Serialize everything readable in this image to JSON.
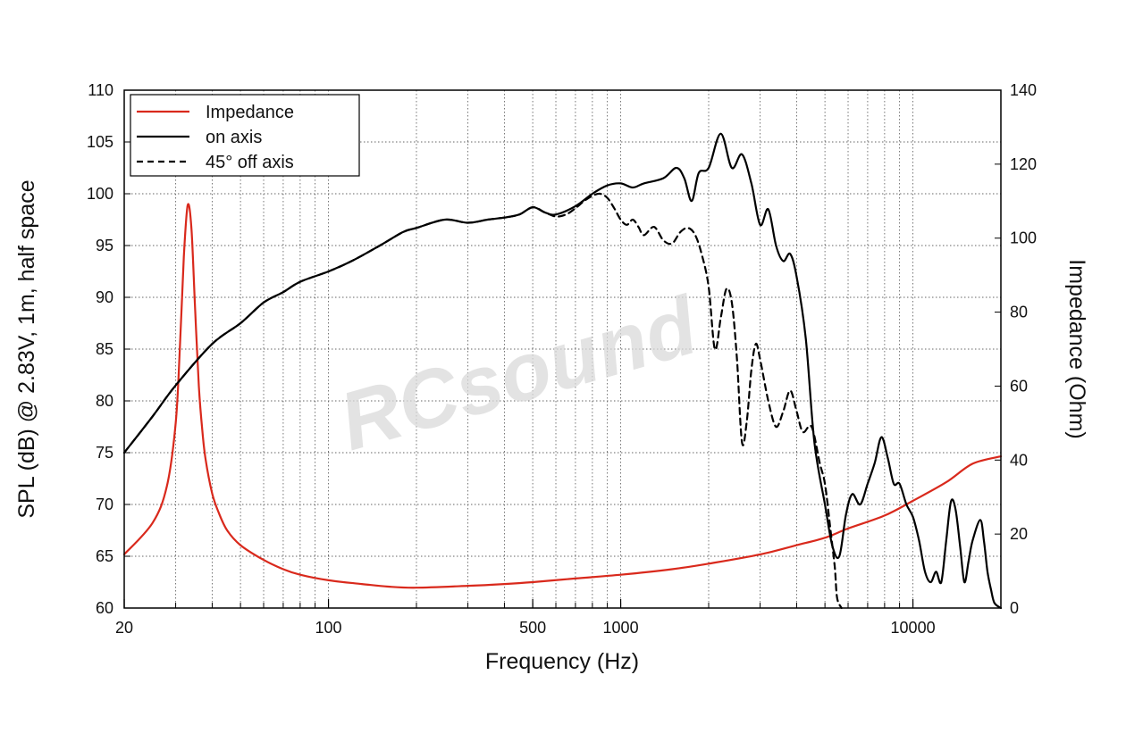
{
  "watermark": "RCsound",
  "chart_data": {
    "type": "line",
    "xlabel": "Frequency (Hz)",
    "ylabel": "SPL (dB) @ 2.83V, 1m, half space",
    "y2label": "Impedance (Ohm)",
    "x_scale": "log",
    "xlim": [
      20,
      20000
    ],
    "ylim": [
      60,
      110
    ],
    "y2lim": [
      0,
      140
    ],
    "x_tick_labels": [
      "20",
      "100",
      "500",
      "1000",
      "10000"
    ],
    "x_tick_values": [
      20,
      100,
      500,
      1000,
      10000
    ],
    "y_ticks": [
      60,
      65,
      70,
      75,
      80,
      85,
      90,
      95,
      100,
      105,
      110
    ],
    "y2_ticks": [
      0,
      20,
      40,
      60,
      80,
      100,
      120,
      140
    ],
    "grid": true,
    "legend_position": "top-left",
    "series": [
      {
        "name": "Impedance",
        "axis": "right",
        "color": "#d9291c",
        "style": "solid",
        "x": [
          20,
          25,
          28,
          30,
          31,
          32,
          33,
          34,
          35,
          36,
          37,
          38,
          40,
          42,
          45,
          50,
          60,
          70,
          80,
          100,
          130,
          160,
          200,
          300,
          400,
          500,
          700,
          1000,
          1500,
          2000,
          3000,
          4000,
          5000,
          6000,
          8000,
          10000,
          13000,
          16000,
          20000
        ],
        "y": [
          14.5,
          23,
          33,
          50,
          70,
          95,
          109,
          102,
          80,
          60,
          48,
          40,
          31,
          26,
          21,
          17,
          13,
          10.5,
          9,
          7.5,
          6.5,
          5.8,
          5.5,
          6,
          6.5,
          7,
          8,
          9,
          10.5,
          12,
          14.5,
          17,
          19,
          21.5,
          25,
          29,
          34,
          39,
          41
        ]
      },
      {
        "name": "on axis",
        "axis": "left",
        "color": "#000000",
        "style": "solid",
        "x": [
          20,
          25,
          30,
          40,
          50,
          60,
          70,
          80,
          100,
          120,
          150,
          180,
          200,
          250,
          300,
          350,
          400,
          450,
          500,
          550,
          600,
          700,
          800,
          900,
          1000,
          1100,
          1200,
          1400,
          1550,
          1650,
          1750,
          1850,
          2000,
          2200,
          2400,
          2600,
          2800,
          3000,
          3200,
          3400,
          3600,
          3800,
          4000,
          4300,
          4600,
          5000,
          5300,
          5600,
          5900,
          6200,
          6600,
          7000,
          7400,
          7800,
          8200,
          8600,
          9000,
          9500,
          10000,
          10500,
          11000,
          11500,
          12000,
          12500,
          13000,
          13500,
          14000,
          14500,
          15000,
          15500,
          16000,
          17000,
          17500,
          18000,
          18500,
          19000,
          20000
        ],
        "y": [
          75,
          78.5,
          81.5,
          85.5,
          87.5,
          89.5,
          90.5,
          91.5,
          92.5,
          93.5,
          95,
          96.3,
          96.7,
          97.5,
          97.2,
          97.5,
          97.7,
          98,
          98.7,
          98.2,
          98,
          98.8,
          100,
          100.8,
          101,
          100.6,
          101,
          101.5,
          102.5,
          101.5,
          99.3,
          102,
          102.5,
          105.8,
          102.5,
          103.8,
          101,
          97,
          98.5,
          95,
          93.5,
          94.2,
          92,
          86,
          76,
          70,
          66,
          65,
          69,
          71,
          70,
          72,
          74,
          76.5,
          74.5,
          72,
          72,
          70,
          68.8,
          66.5,
          63.5,
          62.5,
          63.5,
          62.5,
          66.5,
          70.3,
          69.5,
          66,
          62.5,
          64.5,
          66.5,
          68.5,
          66.5,
          63.5,
          61.8,
          60.5,
          60
        ]
      },
      {
        "name": "45° off axis",
        "axis": "left",
        "color": "#000000",
        "style": "dashed",
        "x": [
          20,
          25,
          30,
          40,
          50,
          60,
          70,
          80,
          100,
          120,
          150,
          180,
          200,
          250,
          300,
          350,
          400,
          450,
          500,
          550,
          600,
          650,
          700,
          750,
          800,
          850,
          900,
          950,
          1000,
          1050,
          1100,
          1150,
          1200,
          1300,
          1400,
          1500,
          1600,
          1700,
          1800,
          1900,
          2000,
          2100,
          2200,
          2300,
          2400,
          2500,
          2600,
          2700,
          2800,
          2900,
          3000,
          3200,
          3400,
          3600,
          3800,
          4000,
          4200,
          4500,
          4800,
          5000,
          5200,
          5400,
          5500,
          5700
        ],
        "y": [
          75,
          78.5,
          81.5,
          85.5,
          87.5,
          89.5,
          90.5,
          91.5,
          92.5,
          93.5,
          95,
          96.3,
          96.7,
          97.5,
          97.2,
          97.5,
          97.7,
          98,
          98.7,
          98.2,
          97.8,
          98,
          98.6,
          99.3,
          99.8,
          100,
          99.6,
          98.6,
          97.5,
          97,
          97.5,
          96.8,
          96,
          96.8,
          95.5,
          95.2,
          96.3,
          96.7,
          96,
          94,
          91,
          85,
          88,
          90.8,
          89.5,
          84,
          76,
          78,
          83,
          85.5,
          84,
          80,
          77.5,
          79,
          81,
          79,
          77,
          77.5,
          74,
          72,
          68,
          64,
          61,
          60
        ]
      }
    ]
  }
}
